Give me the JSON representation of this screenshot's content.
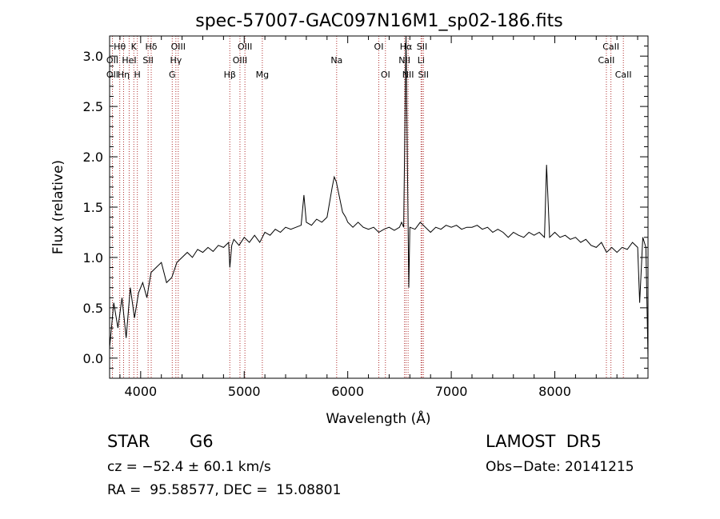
{
  "chart_data": {
    "type": "line",
    "title": "spec-57007-GAC097N16M1_sp02-186.fits",
    "xlabel": "Wavelength (Å)",
    "ylabel": "Flux (relative)",
    "xlim": [
      3700,
      8900
    ],
    "ylim": [
      -0.2,
      3.2
    ],
    "xticks": [
      4000,
      5000,
      6000,
      7000,
      8000
    ],
    "xtick_labels": [
      "4000",
      "5000",
      "6000",
      "7000",
      "8000"
    ],
    "yticks": [
      0.0,
      0.5,
      1.0,
      1.5,
      2.0,
      2.5,
      3.0
    ],
    "ytick_labels": [
      "0.0",
      "0.5",
      "1.0",
      "1.5",
      "2.0",
      "2.5",
      "3.0"
    ],
    "grid": false,
    "line_color": "#000000",
    "marker_color": "#b03030",
    "series": [
      {
        "x": [
          3700,
          3740,
          3780,
          3820,
          3860,
          3900,
          3940,
          3980,
          4020,
          4060,
          4100,
          4150,
          4200,
          4250,
          4300,
          4350,
          4400,
          4450,
          4500,
          4550,
          4600,
          4650,
          4700,
          4750,
          4800,
          4850,
          4861,
          4880,
          4900,
          4950,
          5000,
          5050,
          5100,
          5150,
          5200,
          5250,
          5300,
          5350,
          5400,
          5450,
          5500,
          5550,
          5577,
          5600,
          5650,
          5700,
          5750,
          5800,
          5850,
          5870,
          5890,
          5920,
          5950,
          5980,
          6000,
          6050,
          6100,
          6150,
          6200,
          6250,
          6300,
          6350,
          6400,
          6450,
          6500,
          6520,
          6540,
          6563,
          6590,
          6600,
          6650,
          6700,
          6750,
          6800,
          6850,
          6900,
          6950,
          7000,
          7050,
          7100,
          7150,
          7200,
          7250,
          7300,
          7350,
          7400,
          7450,
          7500,
          7550,
          7600,
          7650,
          7700,
          7750,
          7800,
          7850,
          7900,
          7920,
          7950,
          8000,
          8050,
          8100,
          8150,
          8200,
          8250,
          8300,
          8350,
          8400,
          8450,
          8500,
          8550,
          8600,
          8650,
          8700,
          8750,
          8800,
          8820,
          8850,
          8880,
          8900
        ],
        "y": [
          0.1,
          0.55,
          0.3,
          0.6,
          0.2,
          0.7,
          0.4,
          0.65,
          0.75,
          0.6,
          0.85,
          0.9,
          0.95,
          0.75,
          0.8,
          0.95,
          1.0,
          1.05,
          1.0,
          1.08,
          1.05,
          1.1,
          1.06,
          1.12,
          1.1,
          1.15,
          0.9,
          1.12,
          1.18,
          1.12,
          1.2,
          1.15,
          1.22,
          1.15,
          1.25,
          1.22,
          1.28,
          1.25,
          1.3,
          1.28,
          1.3,
          1.32,
          1.62,
          1.35,
          1.32,
          1.38,
          1.35,
          1.4,
          1.7,
          1.8,
          1.75,
          1.6,
          1.45,
          1.4,
          1.35,
          1.3,
          1.35,
          1.3,
          1.28,
          1.3,
          1.25,
          1.28,
          1.3,
          1.27,
          1.3,
          1.35,
          1.3,
          3.2,
          0.7,
          1.3,
          1.28,
          1.35,
          1.3,
          1.25,
          1.3,
          1.28,
          1.32,
          1.3,
          1.32,
          1.28,
          1.3,
          1.3,
          1.32,
          1.28,
          1.3,
          1.25,
          1.28,
          1.25,
          1.2,
          1.25,
          1.22,
          1.2,
          1.25,
          1.22,
          1.25,
          1.2,
          1.92,
          1.2,
          1.25,
          1.2,
          1.22,
          1.18,
          1.2,
          1.15,
          1.18,
          1.12,
          1.1,
          1.15,
          1.05,
          1.1,
          1.05,
          1.1,
          1.08,
          1.15,
          1.1,
          0.55,
          1.2,
          1.1,
          0.0
        ]
      }
    ],
    "lines": [
      {
        "label": "Hθ",
        "x": 3798,
        "row": 1
      },
      {
        "label": "OII",
        "x": 3727,
        "row": 2
      },
      {
        "label": "OII",
        "x": 3727,
        "row": 3
      },
      {
        "label": "Hη",
        "x": 3835,
        "row": 3
      },
      {
        "label": "HeI",
        "x": 3889,
        "row": 2
      },
      {
        "label": "K",
        "x": 3934,
        "row": 1
      },
      {
        "label": "H",
        "x": 3968,
        "row": 3
      },
      {
        "label": "Hδ",
        "x": 4102,
        "row": 1
      },
      {
        "label": "SII",
        "x": 4072,
        "row": 2
      },
      {
        "label": "OIII",
        "x": 4363,
        "row": 1
      },
      {
        "label": "Hγ",
        "x": 4340,
        "row": 2
      },
      {
        "label": "G",
        "x": 4305,
        "row": 3
      },
      {
        "label": "OIII",
        "x": 5007,
        "row": 1
      },
      {
        "label": "OIII",
        "x": 4959,
        "row": 2
      },
      {
        "label": "Hβ",
        "x": 4861,
        "row": 3
      },
      {
        "label": "Mg",
        "x": 5175,
        "row": 3
      },
      {
        "label": "Na",
        "x": 5893,
        "row": 2
      },
      {
        "label": "OI",
        "x": 6300,
        "row": 1
      },
      {
        "label": "OI",
        "x": 6364,
        "row": 3
      },
      {
        "label": "Hα",
        "x": 6563,
        "row": 1
      },
      {
        "label": "NII",
        "x": 6548,
        "row": 2
      },
      {
        "label": "NII",
        "x": 6583,
        "row": 3
      },
      {
        "label": "SII",
        "x": 6717,
        "row": 1
      },
      {
        "label": "Li",
        "x": 6708,
        "row": 2
      },
      {
        "label": "SII",
        "x": 6731,
        "row": 3
      },
      {
        "label": "CaII",
        "x": 8542,
        "row": 1
      },
      {
        "label": "CaII",
        "x": 8498,
        "row": 2
      },
      {
        "label": "CaII",
        "x": 8662,
        "row": 3
      }
    ]
  },
  "info": {
    "object_type": "STAR",
    "subclass": "G6",
    "survey": "LAMOST  DR5",
    "cz": "cz = −52.4 ± 60.1 km/s",
    "obs_date": "Obs−Date: 20141215",
    "coords": "RA =  95.58577, DEC =  15.08801"
  }
}
